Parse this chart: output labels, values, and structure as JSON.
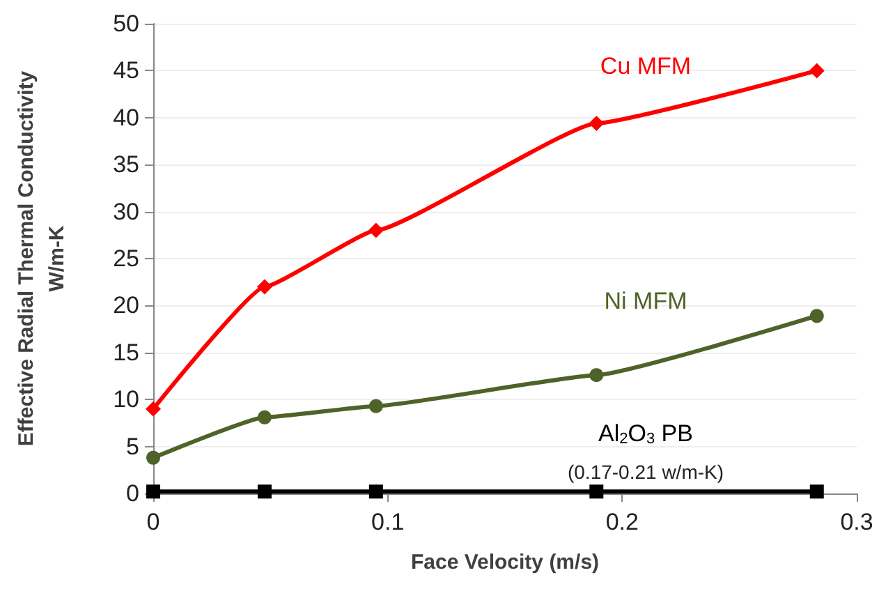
{
  "chart_data": {
    "type": "line",
    "xlabel": "Face Velocity (m/s)",
    "ylabel": "Effective Radial Thermal Conductivity\nW/m-K",
    "x": [
      0,
      0.0475,
      0.095,
      0.189,
      0.283
    ],
    "series": [
      {
        "name": "Cu MFM",
        "color": "#ff0000",
        "marker": "diamond",
        "values": [
          9,
          22,
          28,
          39.4,
          45
        ]
      },
      {
        "name": "Ni MFM",
        "color": "#4f6228",
        "marker": "circle",
        "values": [
          3.8,
          8.1,
          9.3,
          12.6,
          18.9
        ]
      },
      {
        "name": "Al$_{2}$O$_{3}$ PB",
        "color": "#000000",
        "marker": "square",
        "values": [
          0.2,
          0.2,
          0.2,
          0.2,
          0.2
        ]
      }
    ],
    "annotations": [
      "(0.17-0.21 w/m-K)"
    ],
    "xlim": [
      0,
      0.3
    ],
    "xticks": [
      0,
      0.1,
      0.2,
      0.3
    ],
    "ylim": [
      0,
      50
    ],
    "yticks": [
      0,
      5,
      10,
      15,
      20,
      25,
      30,
      35,
      40,
      45,
      50
    ],
    "grid": "y",
    "legend": false,
    "line_style": "solid"
  }
}
